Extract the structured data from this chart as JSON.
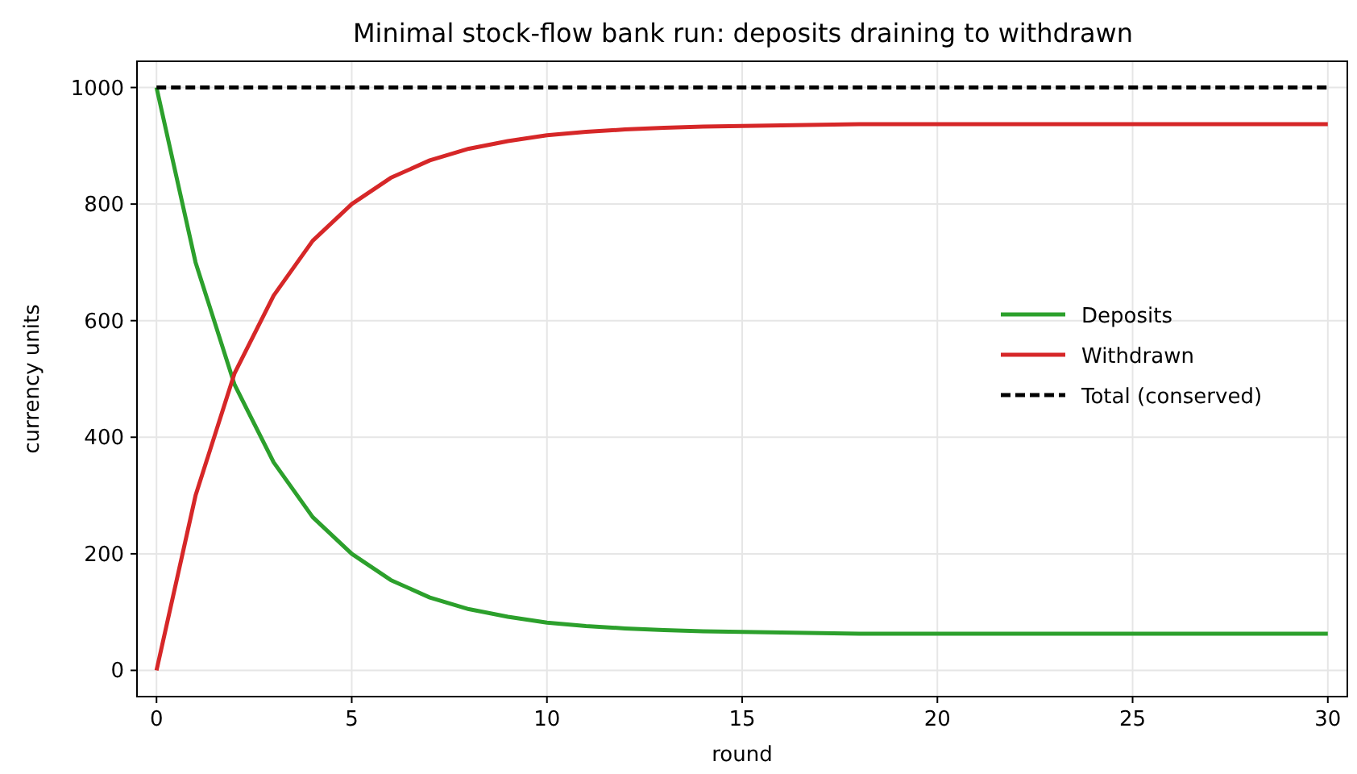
{
  "chart_data": {
    "type": "line",
    "title": "Minimal stock-flow bank run: deposits draining to withdrawn",
    "xlabel": "round",
    "ylabel": "currency units",
    "x": [
      0,
      1,
      2,
      3,
      4,
      5,
      6,
      7,
      8,
      9,
      10,
      11,
      12,
      13,
      14,
      15,
      16,
      17,
      18,
      19,
      20,
      21,
      22,
      23,
      24,
      25,
      26,
      27,
      28,
      29,
      30
    ],
    "series": [
      {
        "name": "Deposits",
        "color": "#2ca02c",
        "values": [
          1000,
          700,
          490,
          357,
          263,
          200,
          155,
          125,
          105,
          92,
          82,
          76,
          72,
          69,
          67,
          66,
          65,
          64,
          63,
          63,
          63,
          63,
          63,
          63,
          63,
          63,
          63,
          63,
          63,
          63,
          63
        ]
      },
      {
        "name": "Withdrawn",
        "color": "#d62728",
        "values": [
          0,
          300,
          510,
          643,
          737,
          800,
          845,
          875,
          895,
          908,
          918,
          924,
          928,
          931,
          933,
          934,
          935,
          936,
          937,
          937,
          937,
          937,
          937,
          937,
          937,
          937,
          937,
          937,
          937,
          937,
          937
        ]
      },
      {
        "name": "Total (conserved)",
        "color": "#000000",
        "line_style": "dashed",
        "values": [
          1000,
          1000,
          1000,
          1000,
          1000,
          1000,
          1000,
          1000,
          1000,
          1000,
          1000,
          1000,
          1000,
          1000,
          1000,
          1000,
          1000,
          1000,
          1000,
          1000,
          1000,
          1000,
          1000,
          1000,
          1000,
          1000,
          1000,
          1000,
          1000,
          1000,
          1000
        ]
      }
    ],
    "xlim": [
      -0.5,
      30.5
    ],
    "ylim": [
      -45,
      1045
    ],
    "xticks": [
      0,
      5,
      10,
      15,
      20,
      25,
      30
    ],
    "yticks": [
      0,
      200,
      400,
      600,
      800,
      1000
    ],
    "grid": true,
    "legend": "center right",
    "line_style": "solid"
  }
}
